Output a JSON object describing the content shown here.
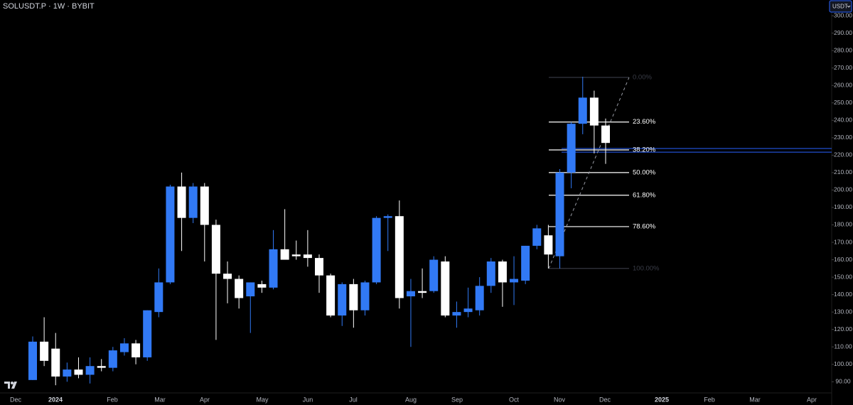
{
  "chart_data": {
    "type": "candlestick",
    "title": "SOLUSDT.P · 1W · BYBIT",
    "currency": "USDT",
    "up_color": "#3179f5",
    "down_color": "#ffffff",
    "open": [
      91,
      113,
      109,
      93,
      97,
      94,
      99,
      98,
      107,
      112,
      104,
      130,
      147,
      202,
      184,
      202,
      180,
      152,
      149,
      139,
      146,
      144,
      166,
      163,
      163,
      161,
      151,
      128,
      146,
      131,
      147,
      184,
      185,
      139,
      142,
      142,
      159,
      128,
      130,
      131,
      145,
      159,
      147,
      148,
      168,
      174,
      162,
      210,
      238,
      253,
      237
    ],
    "high": [
      116,
      127,
      118,
      101,
      104,
      104,
      103,
      110,
      115,
      114,
      131,
      155,
      203,
      210,
      204,
      204,
      183,
      159,
      151,
      147,
      148,
      177,
      189,
      171,
      177,
      163,
      152,
      147,
      149,
      148,
      185,
      186,
      194,
      149,
      155,
      162,
      162,
      136,
      144,
      150,
      161,
      160,
      162,
      168,
      180,
      180,
      212,
      239,
      265,
      257,
      241
    ],
    "low": [
      91,
      99,
      88,
      90,
      92,
      89,
      96,
      96,
      105,
      100,
      102,
      127,
      146,
      165,
      181,
      159,
      114,
      135,
      132,
      118,
      141,
      143,
      161,
      160,
      156,
      141,
      127,
      122,
      121,
      128,
      146,
      165,
      132,
      110,
      138,
      141,
      127,
      121,
      127,
      128,
      141,
      133,
      134,
      146,
      166,
      155,
      155,
      201,
      232,
      221,
      215
    ],
    "close": [
      113,
      102,
      93,
      97,
      94,
      99,
      98,
      108,
      112,
      104,
      131,
      147,
      202,
      184,
      202,
      180,
      152,
      149,
      138,
      147,
      144,
      166,
      160,
      162,
      161,
      151,
      128,
      146,
      131,
      147,
      184,
      185,
      138,
      142,
      141,
      160,
      128,
      130,
      132,
      145,
      159,
      147,
      149,
      168,
      178,
      163,
      210,
      238,
      253,
      237,
      227
    ],
    "ylim": [
      84,
      309
    ],
    "yticks": [
      {
        "value": 90,
        "label": "90.00"
      },
      {
        "value": 100,
        "label": "100.00"
      },
      {
        "value": 110,
        "label": "110.00"
      },
      {
        "value": 120,
        "label": "120.00"
      },
      {
        "value": 130,
        "label": "130.00"
      },
      {
        "value": 140,
        "label": "140.00"
      },
      {
        "value": 150,
        "label": "150.00"
      },
      {
        "value": 160,
        "label": "160.00"
      },
      {
        "value": 170,
        "label": "170.00"
      },
      {
        "value": 180,
        "label": "180.00"
      },
      {
        "value": 190,
        "label": "190.00"
      },
      {
        "value": 200,
        "label": "200.00"
      },
      {
        "value": 210,
        "label": "210.00"
      },
      {
        "value": 220,
        "label": "220.00"
      },
      {
        "value": 230,
        "label": "230.00"
      },
      {
        "value": 240,
        "label": "240.00"
      },
      {
        "value": 250,
        "label": "250.00"
      },
      {
        "value": 260,
        "label": "260.00"
      },
      {
        "value": 270,
        "label": "270.00"
      },
      {
        "value": 280,
        "label": "280.00"
      },
      {
        "value": 290,
        "label": "290.00"
      },
      {
        "value": 300,
        "label": "300.00"
      }
    ],
    "x_axis_labels": [
      "Dec",
      "2024",
      "Feb",
      "Mar",
      "Apr",
      "May",
      "Jun",
      "Jul",
      "Aug",
      "Sep",
      "Oct",
      "Nov",
      "Dec",
      "2025",
      "Feb",
      "Mar",
      "Apr"
    ],
    "fibonacci": [
      {
        "label": "0.00%",
        "price": 264.6
      },
      {
        "label": "23.60%",
        "price": 239
      },
      {
        "label": "38.20%",
        "price": 223
      },
      {
        "label": "50.00%",
        "price": 210
      },
      {
        "label": "61.80%",
        "price": 197
      },
      {
        "label": "78.60%",
        "price": 179
      },
      {
        "label": "100.00%",
        "price": 155
      }
    ],
    "price_band": [
      221.7,
      223.8
    ]
  }
}
